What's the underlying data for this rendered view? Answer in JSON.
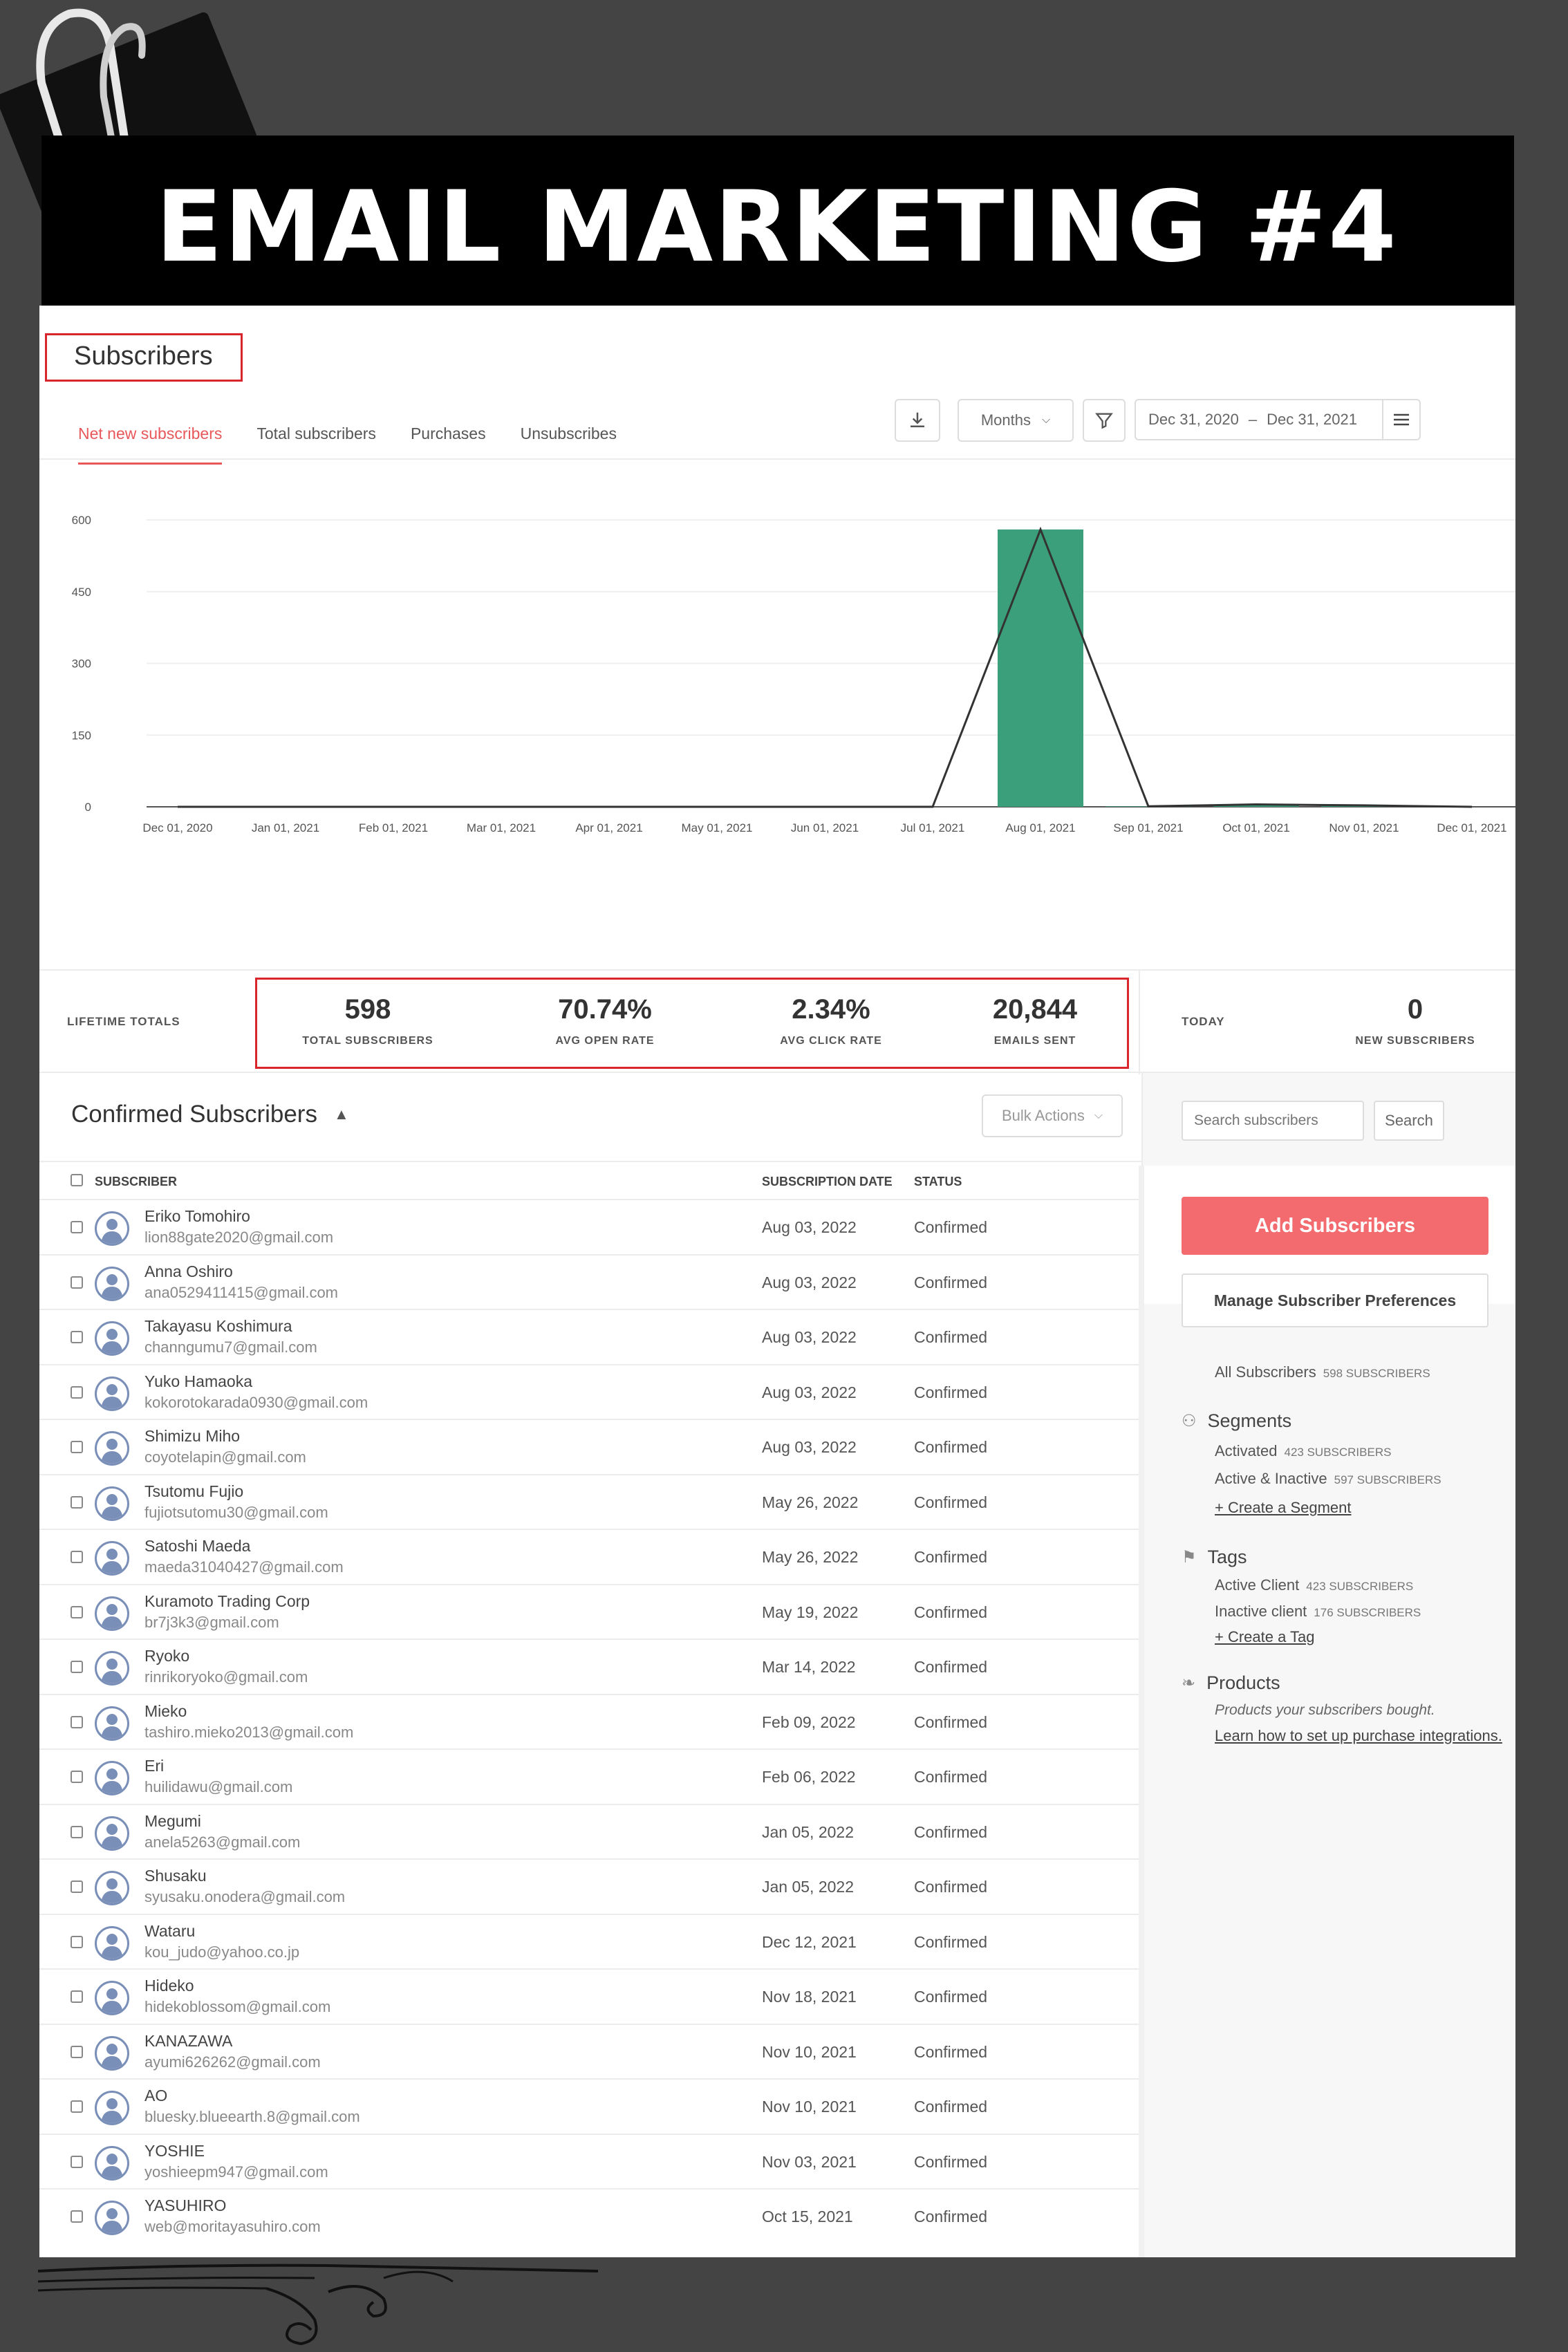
{
  "banner": {
    "title": "EMAIL MARKETING #4"
  },
  "page": {
    "title": "Subscribers"
  },
  "tabs": [
    {
      "label": "Net new subscribers",
      "active": true
    },
    {
      "label": "Total subscribers",
      "active": false
    },
    {
      "label": "Purchases",
      "active": false
    },
    {
      "label": "Unsubscribes",
      "active": false
    }
  ],
  "toolbar": {
    "download_icon": "download-icon",
    "period": "Months",
    "filter_icon": "filter-icon",
    "date_start": "Dec 31, 2020",
    "date_sep": "–",
    "date_end": "Dec 31, 2021",
    "menu_icon": "hamburger-icon"
  },
  "chart_data": {
    "type": "bar",
    "categories": [
      "Dec 01, 2020",
      "Jan 01, 2021",
      "Feb 01, 2021",
      "Mar 01, 2021",
      "Apr 01, 2021",
      "May 01, 2021",
      "Jun 01, 2021",
      "Jul 01, 2021",
      "Aug 01, 2021",
      "Sep 01, 2021",
      "Oct 01, 2021",
      "Nov 01, 2021",
      "Dec 01, 2021"
    ],
    "series": [
      {
        "kind": "bar",
        "values": [
          0,
          0,
          0,
          0,
          0,
          0,
          0,
          0,
          580,
          1,
          5,
          3,
          0
        ],
        "color": "#3a9f7a"
      },
      {
        "kind": "line",
        "values": [
          0,
          0,
          0,
          0,
          0,
          0,
          0,
          0,
          580,
          1,
          5,
          3,
          0
        ],
        "color": "#333333"
      }
    ],
    "y_ticks": [
      0,
      150,
      300,
      450,
      600
    ],
    "ylim": [
      0,
      600
    ],
    "grid": true
  },
  "stats": {
    "lifetime_label": "LIFETIME TOTALS",
    "items": [
      {
        "value": "598",
        "label": "TOTAL SUBSCRIBERS"
      },
      {
        "value": "70.74%",
        "label": "AVG OPEN RATE"
      },
      {
        "value": "2.34%",
        "label": "AVG CLICK RATE"
      },
      {
        "value": "20,844",
        "label": "EMAILS SENT"
      }
    ],
    "today_label": "TODAY",
    "today": {
      "value": "0",
      "label": "NEW SUBSCRIBERS"
    }
  },
  "list": {
    "title": "Confirmed Subscribers",
    "bulk_actions": "Bulk Actions",
    "columns": {
      "subscriber": "SUBSCRIBER",
      "date": "SUBSCRIPTION DATE",
      "status": "STATUS"
    },
    "rows": [
      {
        "name": "Eriko Tomohiro",
        "email": "lion88gate2020@gmail.com",
        "date": "Aug 03, 2022",
        "status": "Confirmed"
      },
      {
        "name": "Anna Oshiro",
        "email": "ana0529411415@gmail.com",
        "date": "Aug 03, 2022",
        "status": "Confirmed"
      },
      {
        "name": "Takayasu Koshimura",
        "email": "channgumu7@gmail.com",
        "date": "Aug 03, 2022",
        "status": "Confirmed"
      },
      {
        "name": "Yuko Hamaoka",
        "email": "kokorotokarada0930@gmail.com",
        "date": "Aug 03, 2022",
        "status": "Confirmed"
      },
      {
        "name": "Shimizu Miho",
        "email": "coyotelapin@gmail.com",
        "date": "Aug 03, 2022",
        "status": "Confirmed"
      },
      {
        "name": "Tsutomu Fujio",
        "email": "fujiotsutomu30@gmail.com",
        "date": "May 26, 2022",
        "status": "Confirmed"
      },
      {
        "name": "Satoshi Maeda",
        "email": "maeda31040427@gmail.com",
        "date": "May 26, 2022",
        "status": "Confirmed"
      },
      {
        "name": "Kuramoto Trading Corp",
        "email": "br7j3k3@gmail.com",
        "date": "May 19, 2022",
        "status": "Confirmed"
      },
      {
        "name": "Ryoko",
        "email": "rinrikoryoko@gmail.com",
        "date": "Mar 14, 2022",
        "status": "Confirmed"
      },
      {
        "name": "Mieko",
        "email": "tashiro.mieko2013@gmail.com",
        "date": "Feb 09, 2022",
        "status": "Confirmed"
      },
      {
        "name": "Eri",
        "email": "huilidawu@gmail.com",
        "date": "Feb 06, 2022",
        "status": "Confirmed"
      },
      {
        "name": "Megumi",
        "email": "anela5263@gmail.com",
        "date": "Jan 05, 2022",
        "status": "Confirmed"
      },
      {
        "name": "Shusaku",
        "email": "syusaku.onodera@gmail.com",
        "date": "Jan 05, 2022",
        "status": "Confirmed"
      },
      {
        "name": "Wataru",
        "email": "kou_judo@yahoo.co.jp",
        "date": "Dec 12, 2021",
        "status": "Confirmed"
      },
      {
        "name": "Hideko",
        "email": "hidekoblossom@gmail.com",
        "date": "Nov 18, 2021",
        "status": "Confirmed"
      },
      {
        "name": "KANAZAWA",
        "email": "ayumi626262@gmail.com",
        "date": "Nov 10, 2021",
        "status": "Confirmed"
      },
      {
        "name": "AO",
        "email": "bluesky.blueearth.8@gmail.com",
        "date": "Nov 10, 2021",
        "status": "Confirmed"
      },
      {
        "name": "YOSHIE",
        "email": "yoshieepm947@gmail.com",
        "date": "Nov 03, 2021",
        "status": "Confirmed"
      },
      {
        "name": "YASUHIRO",
        "email": "web@moritayasuhiro.com",
        "date": "Oct 15, 2021",
        "status": "Confirmed"
      }
    ]
  },
  "sidebar": {
    "search_placeholder": "Search subscribers",
    "search_button": "Search",
    "add_button": "Add Subscribers",
    "manage_button": "Manage Subscriber Preferences",
    "all_label": "All Subscribers",
    "all_count": "598 SUBSCRIBERS",
    "segments": {
      "heading": "Segments",
      "items": [
        {
          "label": "Activated",
          "count": "423 SUBSCRIBERS"
        },
        {
          "label": "Active & Inactive",
          "count": "597 SUBSCRIBERS"
        }
      ],
      "create": "+ Create a Segment"
    },
    "tags": {
      "heading": "Tags",
      "items": [
        {
          "label": "Active Client",
          "count": "423 SUBSCRIBERS"
        },
        {
          "label": "Inactive client",
          "count": "176 SUBSCRIBERS"
        }
      ],
      "create": "+ Create a Tag"
    },
    "products": {
      "heading": "Products",
      "note": "Products your subscribers bought.",
      "link": "Learn how to set up purchase integrations."
    }
  }
}
